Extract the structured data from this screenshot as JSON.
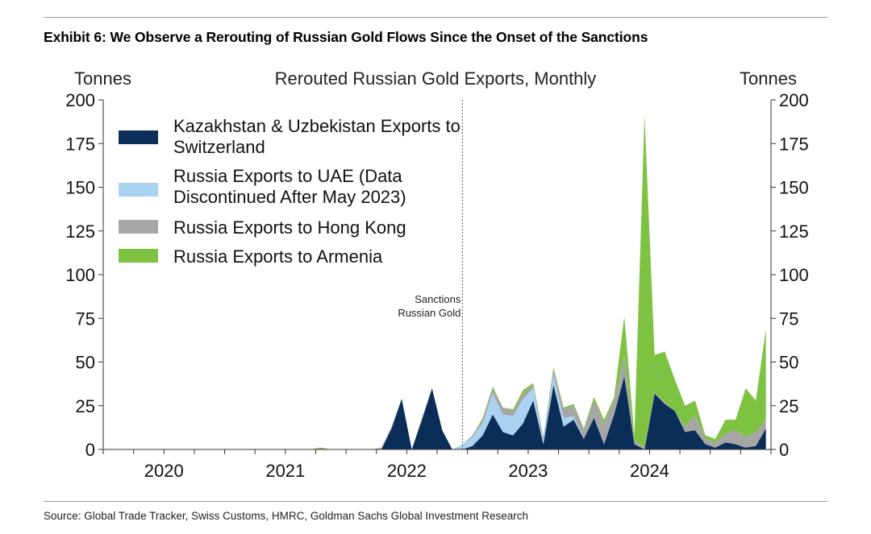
{
  "exhibit": {
    "title": "Exhibit 6: We Observe a Rerouting of Russian Gold Flows Since the Onset of the Sanctions",
    "source": "Source: Global Trade Tracker, Swiss Customs, HMRC, Goldman Sachs Global Investment Research"
  },
  "chart_data": {
    "type": "area",
    "stacked": true,
    "title": "Rerouted Russian Gold Exports, Monthly",
    "ylabel_left": "Tonnes",
    "ylabel_right": "Tonnes",
    "ylim": [
      0,
      200
    ],
    "yticks": [
      0,
      25,
      50,
      75,
      100,
      125,
      150,
      175,
      200
    ],
    "ytick_labels": [
      "0",
      "25",
      "50",
      "75",
      "100",
      "125",
      "150",
      "175",
      "200"
    ],
    "xlim": [
      "2019-07",
      "2024-12"
    ],
    "xtick_labels": [
      {
        "label": "2020",
        "month": 6
      },
      {
        "label": "2021",
        "month": 18
      },
      {
        "label": "2022",
        "month": 30
      },
      {
        "label": "2023",
        "month": 42
      },
      {
        "label": "2024",
        "month": 54
      }
    ],
    "x": [
      "2019-07",
      "2019-08",
      "2019-09",
      "2019-10",
      "2019-11",
      "2019-12",
      "2020-01",
      "2020-02",
      "2020-03",
      "2020-04",
      "2020-05",
      "2020-06",
      "2020-07",
      "2020-08",
      "2020-09",
      "2020-10",
      "2020-11",
      "2020-12",
      "2021-01",
      "2021-02",
      "2021-03",
      "2021-04",
      "2021-05",
      "2021-06",
      "2021-07",
      "2021-08",
      "2021-09",
      "2021-10",
      "2021-11",
      "2021-12",
      "2022-01",
      "2022-02",
      "2022-03",
      "2022-04",
      "2022-05",
      "2022-06",
      "2022-07",
      "2022-08",
      "2022-09",
      "2022-10",
      "2022-11",
      "2022-12",
      "2023-01",
      "2023-02",
      "2023-03",
      "2023-04",
      "2023-05",
      "2023-06",
      "2023-07",
      "2023-08",
      "2023-09",
      "2023-10",
      "2023-11",
      "2023-12",
      "2024-01",
      "2024-02",
      "2024-03",
      "2024-04",
      "2024-05",
      "2024-06",
      "2024-07",
      "2024-08",
      "2024-09",
      "2024-10",
      "2024-11",
      "2024-12"
    ],
    "series": [
      {
        "name": "Kazakhstan & Uzbekistan Exports to Switzerland",
        "color": "#0b2e59",
        "values": [
          0,
          0,
          0,
          0,
          0,
          0,
          0,
          0,
          0,
          0,
          0,
          0,
          0,
          0,
          0,
          0,
          0,
          0,
          0,
          0,
          0,
          0,
          0,
          0,
          0,
          0,
          0,
          0,
          12,
          29,
          0,
          17,
          35,
          11,
          0,
          0,
          2,
          8,
          20,
          10,
          8,
          15,
          28,
          3,
          37,
          13,
          17,
          6,
          18,
          3,
          20,
          42,
          3,
          0,
          32,
          26,
          22,
          10,
          11,
          3,
          1,
          4,
          3,
          1,
          2,
          12
        ]
      },
      {
        "name": "Russia Exports to UAE (Data Discontinued After May 2023)",
        "color": "#a9d3f1",
        "values": [
          0,
          0,
          0,
          0,
          0,
          0,
          0,
          0,
          0,
          0,
          0,
          0,
          0,
          0,
          0,
          0,
          0,
          0,
          0,
          0,
          0,
          0,
          0,
          0,
          0,
          0,
          0,
          0,
          0,
          0,
          0,
          0,
          0,
          0,
          0,
          3,
          5,
          7,
          12,
          10,
          11,
          14,
          7,
          2,
          6,
          5,
          2,
          0,
          0,
          0,
          0,
          0,
          0,
          0,
          0,
          0,
          0,
          0,
          0,
          0,
          0,
          0,
          0,
          0,
          0,
          0
        ]
      },
      {
        "name": "Russia Exports to Hong Kong",
        "color": "#a6a6a6",
        "values": [
          0,
          0,
          0,
          0,
          0,
          0,
          0,
          0,
          0,
          0,
          0,
          0,
          0,
          0,
          0,
          0,
          0,
          0,
          0,
          0,
          0,
          0,
          0,
          0,
          0,
          0,
          0,
          1,
          1,
          0,
          0,
          1,
          0,
          0,
          0,
          0,
          1,
          2,
          3,
          4,
          3,
          3,
          2,
          2,
          3,
          5,
          6,
          5,
          10,
          12,
          8,
          12,
          2,
          1,
          1,
          1,
          0,
          3,
          9,
          3,
          3,
          5,
          8,
          6,
          8,
          5
        ]
      },
      {
        "name": "Russia Exports to Armenia",
        "color": "#7ec242",
        "values": [
          0,
          0,
          0,
          0,
          0,
          0,
          0,
          0,
          0,
          0,
          0,
          0,
          0,
          0,
          0,
          0,
          0,
          0,
          0,
          0,
          0,
          1,
          0,
          0,
          0,
          0,
          0,
          0,
          0,
          0,
          0,
          0,
          0,
          0,
          0,
          0,
          0,
          1,
          1,
          0,
          1,
          2,
          1,
          0,
          1,
          1,
          1,
          1,
          2,
          2,
          2,
          22,
          3,
          190,
          21,
          29,
          18,
          12,
          8,
          2,
          2,
          8,
          6,
          28,
          18,
          52
        ]
      }
    ],
    "legend_position": "top-left",
    "annotation": {
      "label_line1": "Sanctions",
      "label_line2": "Russian Gold",
      "x": "2022-06",
      "style": "dashed vertical line"
    },
    "grid": false
  }
}
